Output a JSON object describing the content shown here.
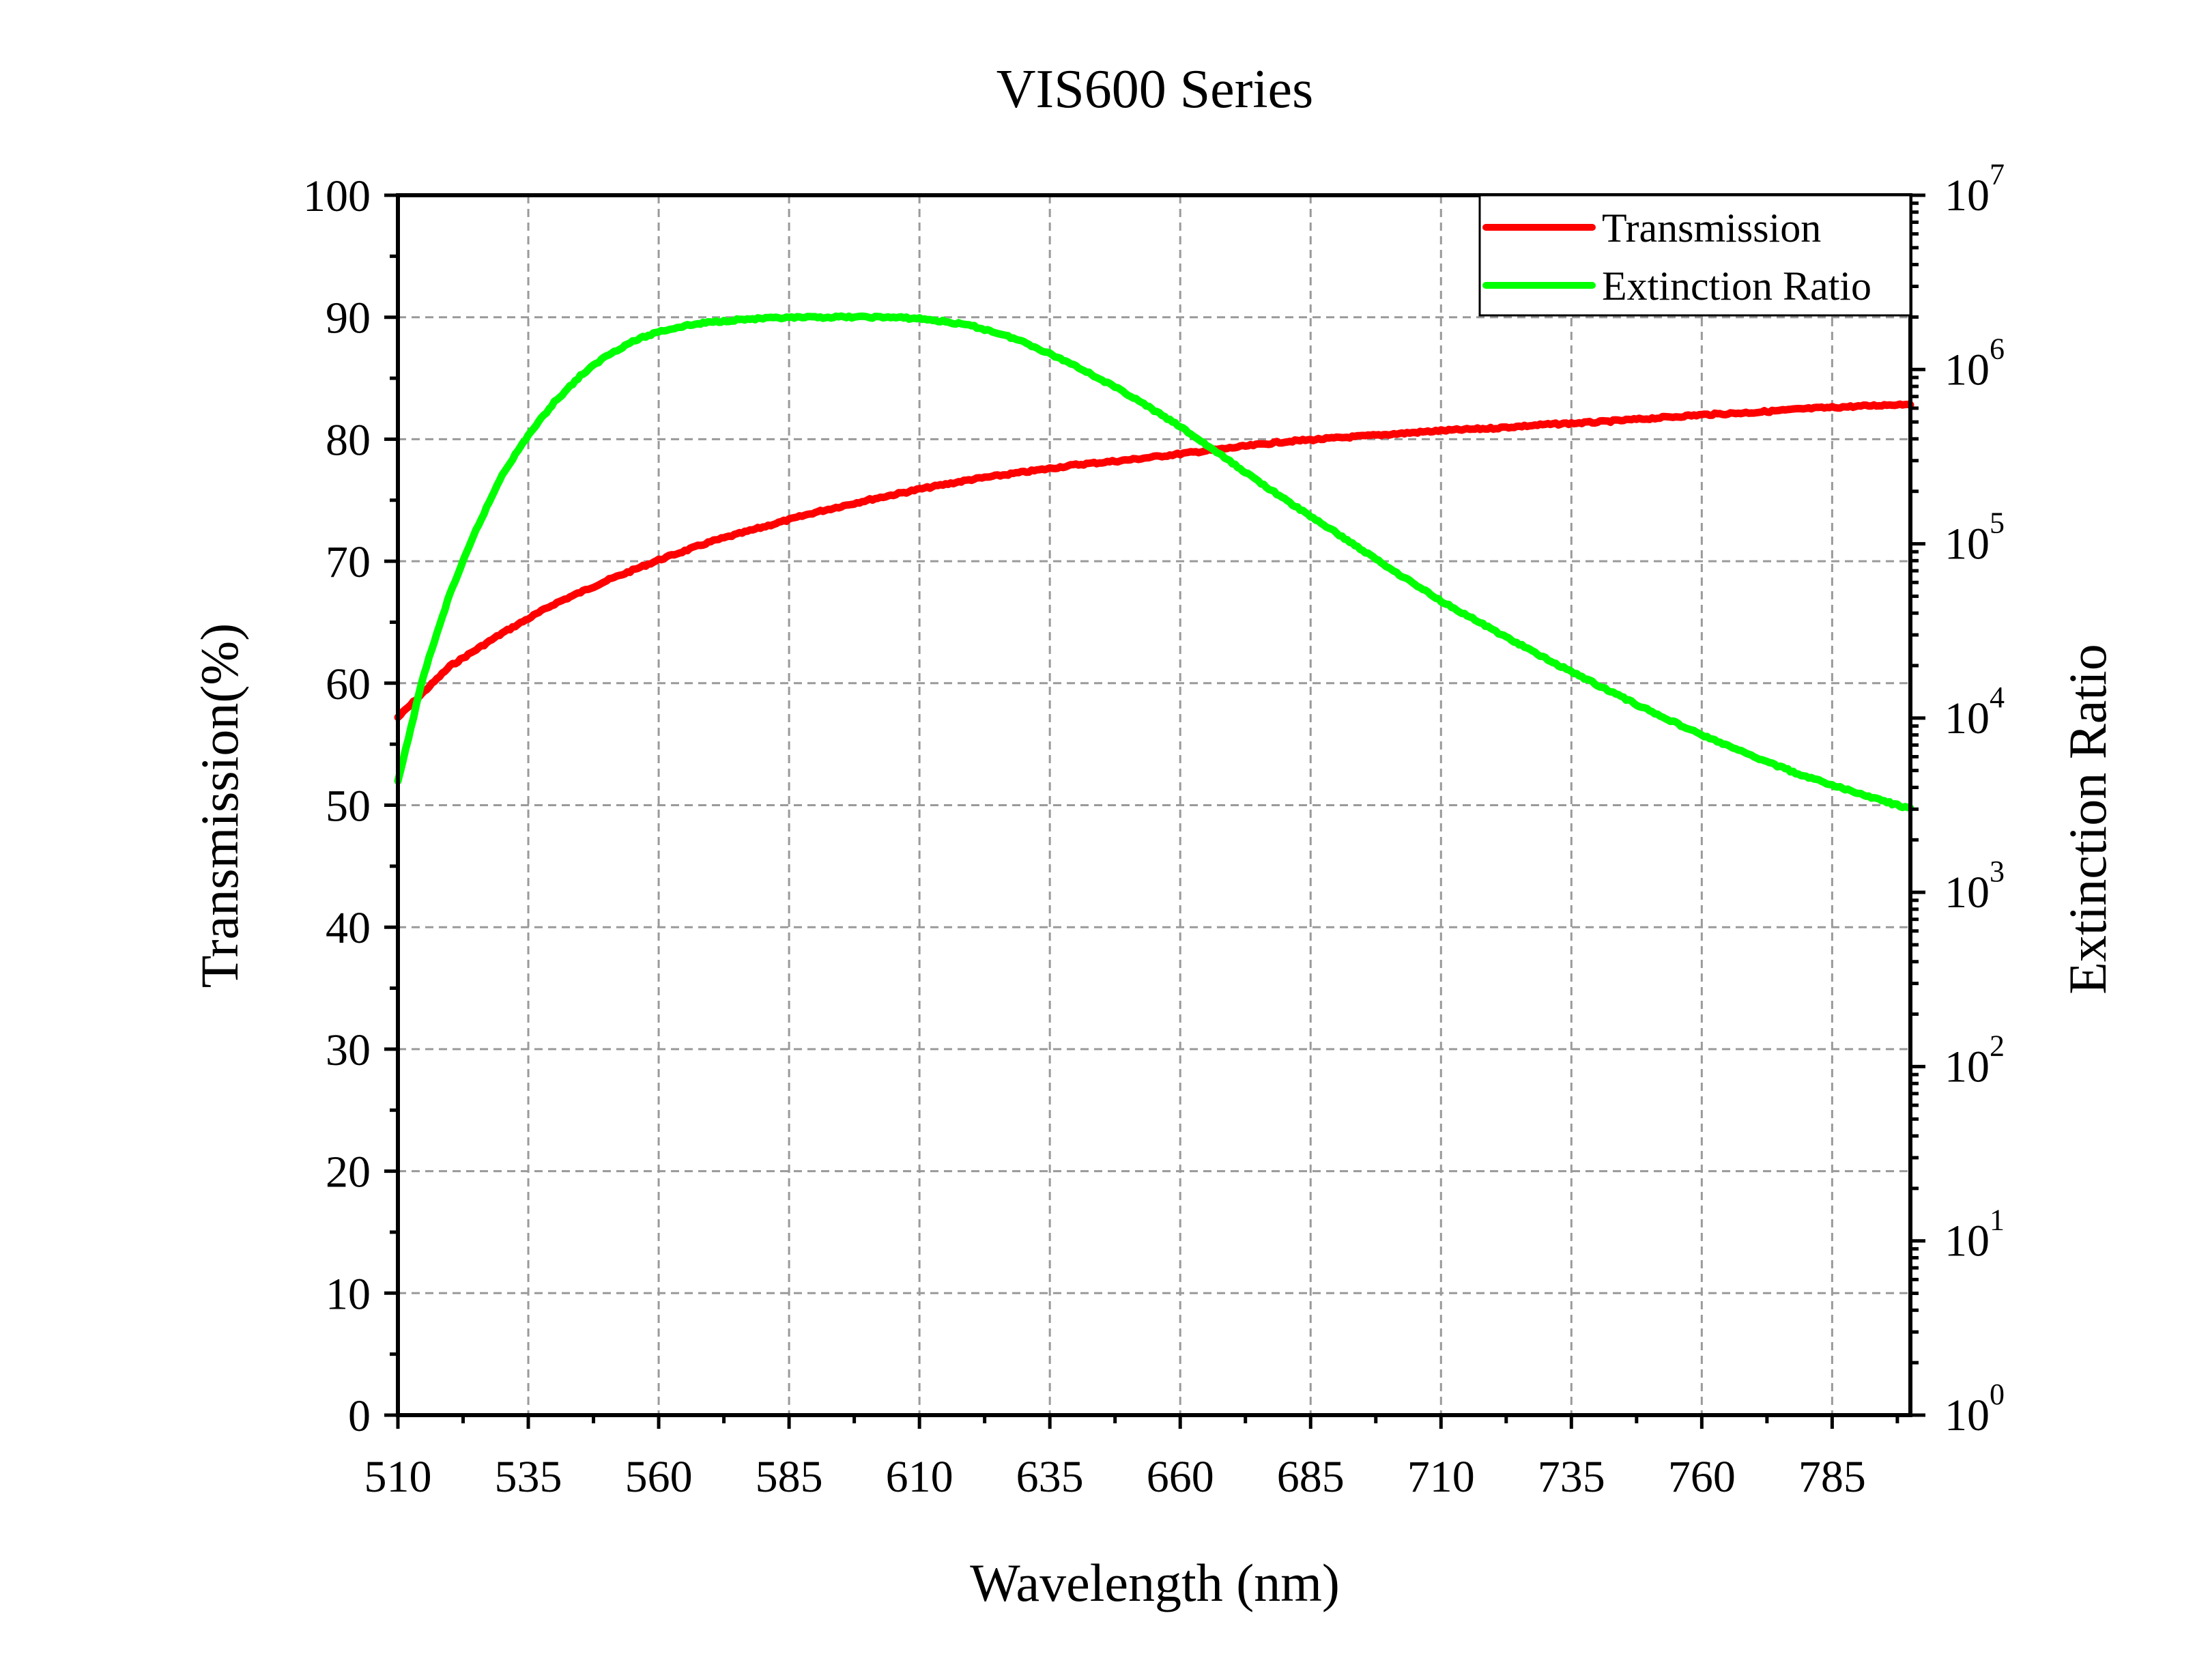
{
  "chart_data": {
    "type": "line",
    "title": "VIS600 Series",
    "xlabel": "Wavelength (nm)",
    "ylabel": "Transmission(%)",
    "y2label": "Extinction Ratio",
    "xlim": [
      510,
      800
    ],
    "ylim": [
      0,
      100
    ],
    "y2lim": [
      1,
      10000000
    ],
    "y2scale": "log",
    "x_ticks": [
      "510",
      "535",
      "560",
      "585",
      "610",
      "635",
      "660",
      "685",
      "710",
      "735",
      "760",
      "785"
    ],
    "y_ticks": [
      "0",
      "10",
      "20",
      "30",
      "40",
      "50",
      "60",
      "70",
      "80",
      "90",
      "100"
    ],
    "y2_ticks": [
      {
        "base": "10",
        "exp": "0"
      },
      {
        "base": "10",
        "exp": "1"
      },
      {
        "base": "10",
        "exp": "2"
      },
      {
        "base": "10",
        "exp": "3"
      },
      {
        "base": "10",
        "exp": "4"
      },
      {
        "base": "10",
        "exp": "5"
      },
      {
        "base": "10",
        "exp": "6"
      },
      {
        "base": "10",
        "exp": "7"
      }
    ],
    "grid": true,
    "legend_position": "top-right",
    "series": [
      {
        "name": "Transmission",
        "axis": "left",
        "color": "#ff0000",
        "x": [
          510,
          520,
          530,
          540,
          550,
          560,
          570,
          580,
          590,
          600,
          610,
          620,
          630,
          640,
          650,
          660,
          670,
          680,
          690,
          700,
          710,
          720,
          730,
          740,
          750,
          760,
          770,
          780,
          790,
          800
        ],
        "y": [
          57.2,
          61.4,
          64.1,
          66.5,
          68.4,
          70.1,
          71.6,
          72.8,
          74.0,
          75.0,
          75.9,
          76.7,
          77.3,
          77.9,
          78.3,
          78.8,
          79.3,
          79.8,
          80.1,
          80.4,
          80.7,
          80.9,
          81.2,
          81.4,
          81.7,
          82.0,
          82.2,
          82.5,
          82.7,
          82.9
        ]
      },
      {
        "name": "Extinction Ratio",
        "axis": "right",
        "color": "#00ff00",
        "x": [
          510,
          515,
          520,
          525,
          530,
          535,
          540,
          545,
          550,
          555,
          560,
          565,
          570,
          575,
          580,
          585,
          590,
          595,
          600,
          605,
          610,
          615,
          620,
          625,
          630,
          640,
          650,
          660,
          670,
          680,
          690,
          700,
          710,
          720,
          730,
          740,
          750,
          760,
          770,
          780,
          790,
          800
        ],
        "y": [
          4300,
          18000,
          52000,
          120000,
          250000,
          420000,
          650000,
          920000,
          1200000,
          1450000,
          1650000,
          1780000,
          1870000,
          1930000,
          1960000,
          1980000,
          1990000,
          2000000,
          2000000,
          1990000,
          1960000,
          1880000,
          1780000,
          1620000,
          1440000,
          1050000,
          720000,
          470000,
          290000,
          180000,
          115000,
          73000,
          47000,
          32000,
          22000,
          15500,
          11000,
          8000,
          6000,
          4600,
          3700,
          3000
        ]
      }
    ]
  }
}
